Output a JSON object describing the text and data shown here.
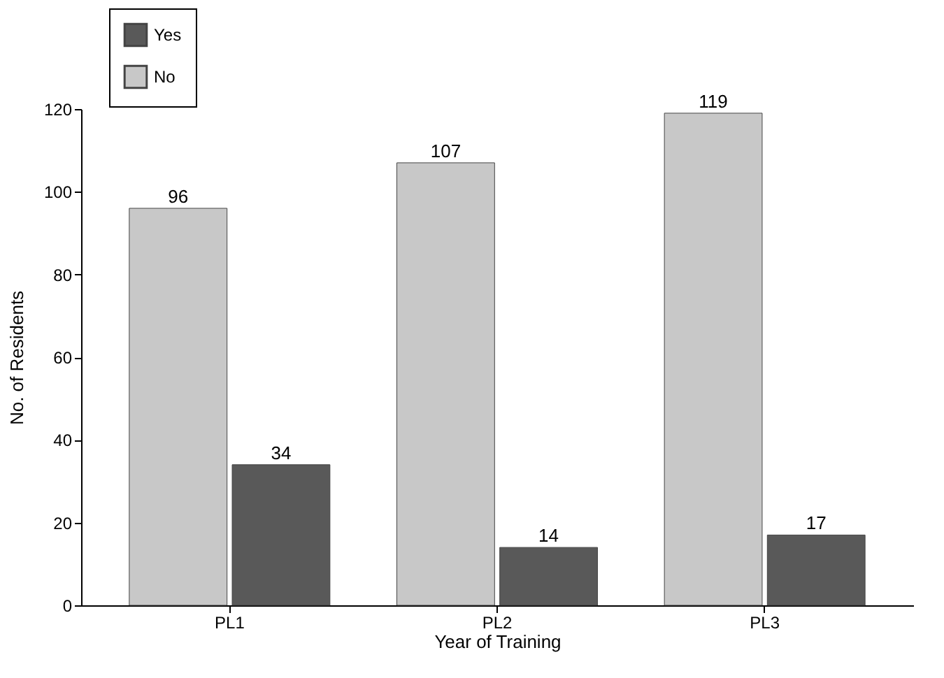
{
  "chart_data": {
    "type": "bar",
    "xlabel": "Year of Training",
    "ylabel": "No. of Residents",
    "categories": [
      "PL1",
      "PL2",
      "PL3"
    ],
    "series": [
      {
        "name": "No",
        "color": "#c8c8c8",
        "values": [
          96,
          107,
          119
        ]
      },
      {
        "name": "Yes",
        "color": "#595959",
        "values": [
          34,
          14,
          17
        ]
      }
    ],
    "ylim": [
      0,
      120
    ],
    "yticks": [
      0,
      20,
      40,
      60,
      80,
      100,
      120
    ],
    "grid": false,
    "legend": "top left",
    "data_labels": true
  }
}
